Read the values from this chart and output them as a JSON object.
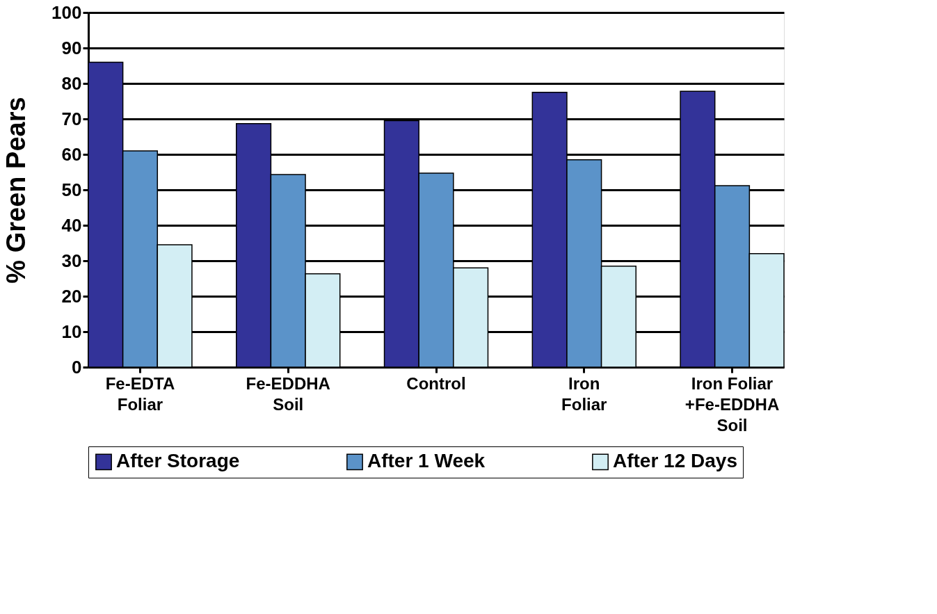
{
  "chart_data": {
    "type": "bar",
    "ylabel": "% Green Pears",
    "categories": [
      "Fe-EDTA\nFoliar",
      "Fe-EDDHA\nSoil",
      "Control",
      "Iron\nFoliar",
      "Iron Foliar\n+Fe-EDDHA\nSoil"
    ],
    "series": [
      {
        "name": "After Storage",
        "color": "#333399",
        "values": [
          86,
          68.7,
          69.5,
          77.5,
          77.8
        ]
      },
      {
        "name": "After 1 Week",
        "color": "#5b93c9",
        "values": [
          61,
          54.3,
          54.7,
          58.5,
          51.2
        ]
      },
      {
        "name": "After 12 Days",
        "color": "#d3eef4",
        "values": [
          34.5,
          26.3,
          28,
          28.5,
          32
        ]
      }
    ],
    "ylim": [
      0,
      100
    ],
    "yticks": [
      0,
      10,
      20,
      30,
      40,
      50,
      60,
      70,
      80,
      90,
      100
    ],
    "grid": "y",
    "legend": "bottom"
  }
}
